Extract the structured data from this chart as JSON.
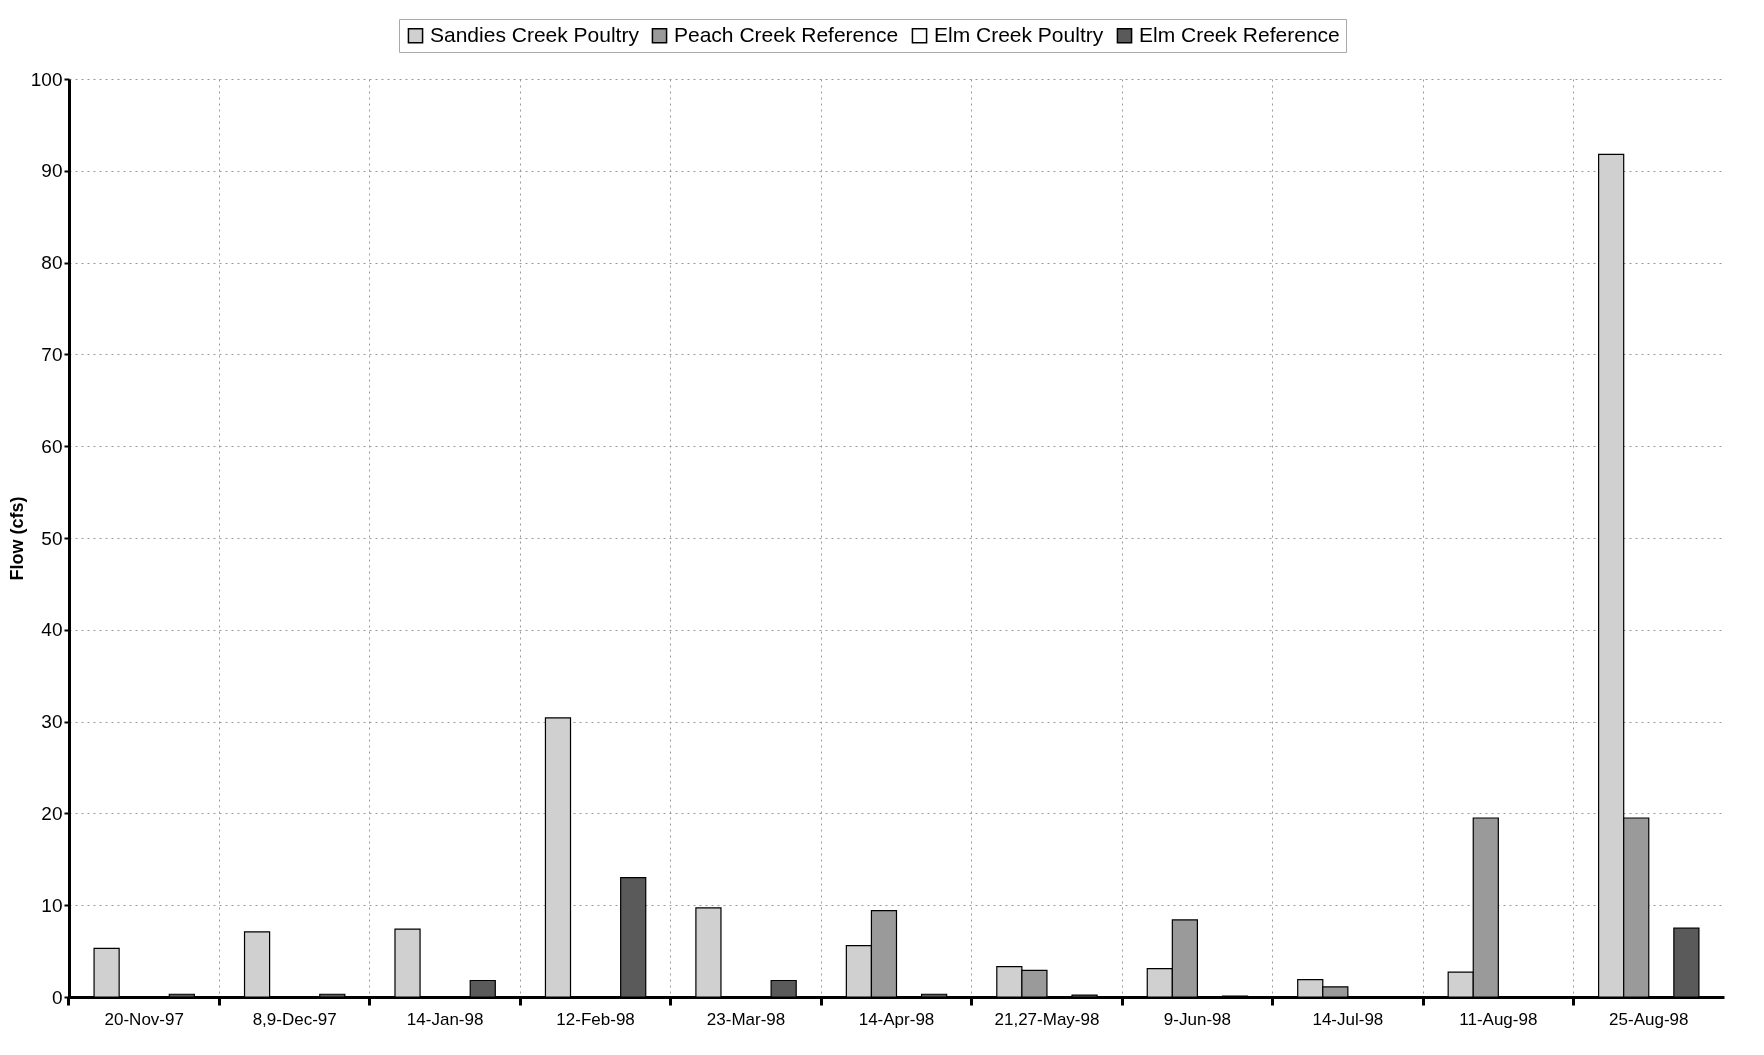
{
  "chart_data": {
    "type": "bar",
    "ylabel": "Flow (cfs)",
    "categories": [
      "20-Nov-97",
      "8,9-Dec-97",
      "14-Jan-98",
      "12-Feb-98",
      "23-Mar-98",
      "14-Apr-98",
      "21,27-May-98",
      "9-Jun-98",
      "14-Jul-98",
      "11-Aug-98",
      "25-Aug-98"
    ],
    "series": [
      {
        "name": "Sandies Creek Poultry",
        "color": "#d0d0d0",
        "values": [
          5.3,
          7.1,
          7.4,
          30.4,
          9.7,
          5.6,
          3.3,
          3.1,
          1.9,
          2.7,
          91.8
        ]
      },
      {
        "name": "Peach Creek Reference",
        "color": "#9a9a9a",
        "values": [
          null,
          null,
          null,
          null,
          null,
          9.4,
          2.9,
          8.4,
          1.1,
          19.5,
          19.5
        ]
      },
      {
        "name": "Elm Creek Poultry",
        "color": "#ffffff",
        "values": [
          null,
          null,
          null,
          null,
          null,
          null,
          null,
          null,
          null,
          null,
          null
        ]
      },
      {
        "name": "Elm Creek Reference",
        "color": "#5a5a5a",
        "values": [
          0.3,
          0.3,
          1.8,
          13.0,
          1.8,
          0.3,
          0.2,
          0.1,
          null,
          null,
          7.5
        ]
      }
    ],
    "ylim": [
      0,
      100
    ],
    "yticks": [
      0,
      10,
      20,
      30,
      40,
      50,
      60,
      70,
      80,
      90,
      100
    ],
    "grid": true,
    "legend": "top"
  }
}
